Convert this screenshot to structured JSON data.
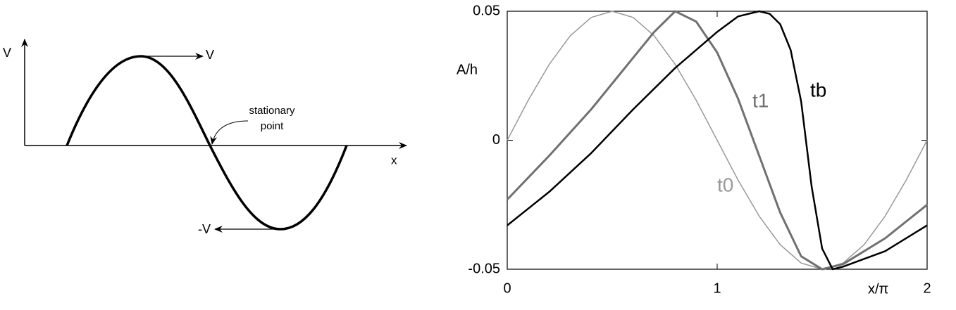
{
  "diagram": {
    "labels": {
      "v_axis": "V",
      "v_right": "V",
      "stationary_1": "stationary",
      "stationary_2": "point",
      "x_axis": "x",
      "v_left": "-V"
    }
  },
  "chart_data": {
    "type": "line",
    "ylabel": "A/h",
    "xlabel": "x/π",
    "xlim": [
      0,
      2
    ],
    "xticks": [
      0,
      1,
      2
    ],
    "ylim": [
      -0.05,
      0.05
    ],
    "yticks": [
      -0.05,
      0,
      0.05
    ],
    "series": [
      {
        "name": "t0",
        "color": "#999999",
        "width": 1.5,
        "x": [
          0,
          0.1,
          0.2,
          0.3,
          0.4,
          0.5,
          0.6,
          0.7,
          0.8,
          0.9,
          1.0,
          1.1,
          1.2,
          1.3,
          1.4,
          1.5,
          1.6,
          1.7,
          1.8,
          1.9,
          2.0
        ],
        "values": [
          0,
          0.0155,
          0.0294,
          0.0405,
          0.0476,
          0.05,
          0.0476,
          0.0405,
          0.0294,
          0.0155,
          0,
          -0.0155,
          -0.0294,
          -0.0405,
          -0.0476,
          -0.05,
          -0.0476,
          -0.0405,
          -0.0294,
          -0.0155,
          0
        ]
      },
      {
        "name": "t1",
        "color": "#707070",
        "width": 3,
        "x": [
          0,
          0.2,
          0.4,
          0.6,
          0.7,
          0.8,
          0.9,
          1.0,
          1.1,
          1.2,
          1.3,
          1.4,
          1.5,
          1.6,
          1.8,
          2.0
        ],
        "values": [
          -0.023,
          -0.006,
          0.012,
          0.032,
          0.042,
          0.05,
          0.046,
          0.034,
          0.016,
          -0.006,
          -0.028,
          -0.045,
          -0.05,
          -0.048,
          -0.038,
          -0.025
        ]
      },
      {
        "name": "tb",
        "color": "#000000",
        "width": 2.5,
        "x": [
          0,
          0.2,
          0.4,
          0.6,
          0.8,
          1.0,
          1.1,
          1.2,
          1.25,
          1.3,
          1.35,
          1.4,
          1.45,
          1.5,
          1.55,
          1.6,
          1.8,
          2.0
        ],
        "values": [
          -0.033,
          -0.02,
          -0.005,
          0.012,
          0.028,
          0.042,
          0.048,
          0.05,
          0.049,
          0.045,
          0.035,
          0.015,
          -0.018,
          -0.042,
          -0.05,
          -0.049,
          -0.043,
          -0.033
        ]
      }
    ]
  }
}
